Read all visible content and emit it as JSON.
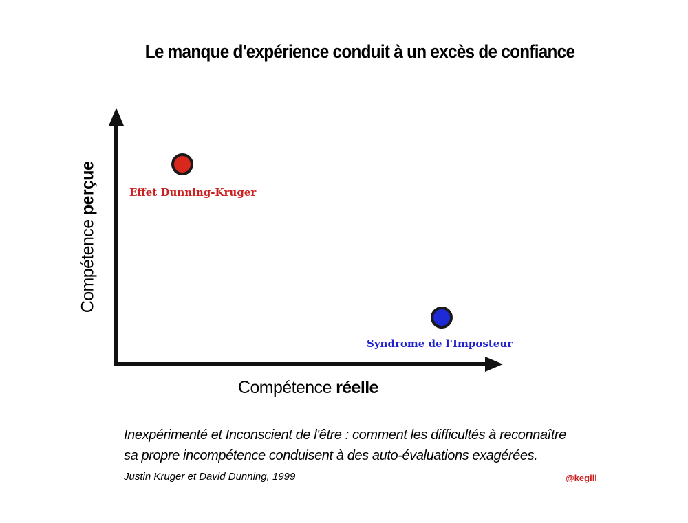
{
  "title": "Le manque d'expérience conduit à un excès de confiance",
  "axes": {
    "x": {
      "regular": "Compétence ",
      "bold": "réelle"
    },
    "y": {
      "regular": "Compétence ",
      "bold": "perçue"
    }
  },
  "points": [
    {
      "label": "Effet Dunning-Kruger",
      "color": "#cc1f1f"
    },
    {
      "label": "Syndrome de l'Imposteur",
      "color": "#1f1fcc"
    }
  ],
  "caption": {
    "line1": "Inexpérimenté et Inconscient de l'être : comment les difficultés à reconnaître",
    "line2": "sa propre incompétence conduisent à des auto-évaluations exagérées."
  },
  "citation": "Justin Kruger et David Dunning, 1999",
  "handle": "@kegill",
  "colors": {
    "axis": "#111111",
    "dunning_kruger": "#cc1f1f",
    "imposteur": "#1f1fcc"
  }
}
